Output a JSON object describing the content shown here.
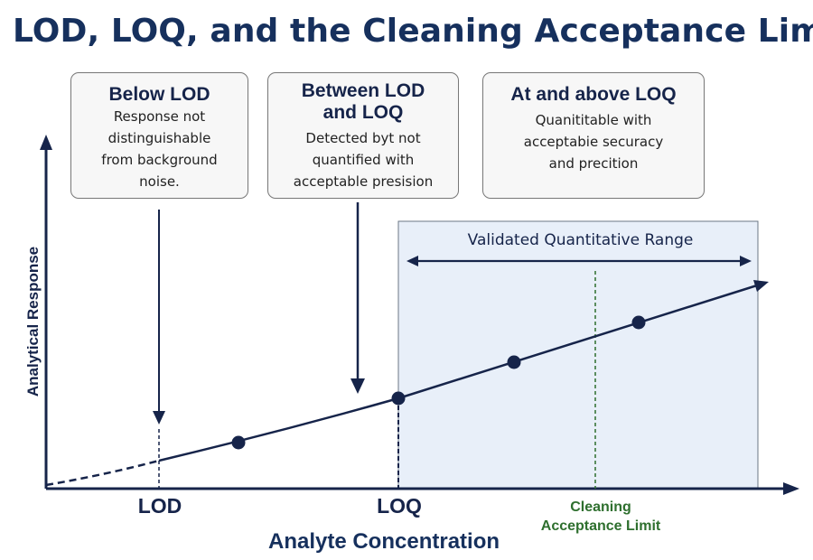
{
  "title": "LOD, LOQ, and the Cleaning Acceptance Limit",
  "callouts": {
    "below_lod": {
      "heading": "Below LOD",
      "lines": [
        "Response not",
        "distinguishable",
        "from background",
        "noise."
      ]
    },
    "between": {
      "heading_lines": [
        "Between LOD",
        "and LOQ"
      ],
      "lines": [
        "Detected byt not",
        "quantified with",
        "acceptable presision"
      ]
    },
    "above_loq": {
      "heading": "At and above LOQ",
      "lines": [
        "Quanititable with",
        "acceptabie securacy",
        "and precition"
      ]
    }
  },
  "validated_range_label": "Validated Quantitative Range",
  "axes": {
    "y_label": "Analytical Response",
    "x_label": "Analyte Concentration"
  },
  "x_markers": {
    "lod": "LOD",
    "loq": "LOQ",
    "cleaning_limit_lines": [
      "Cleaning",
      "Acceptance Limit"
    ]
  },
  "colors": {
    "navy": "#16244a",
    "title": "#16305d",
    "range_fill": "#e8eff9",
    "limit_green": "#2e6f2e"
  }
}
